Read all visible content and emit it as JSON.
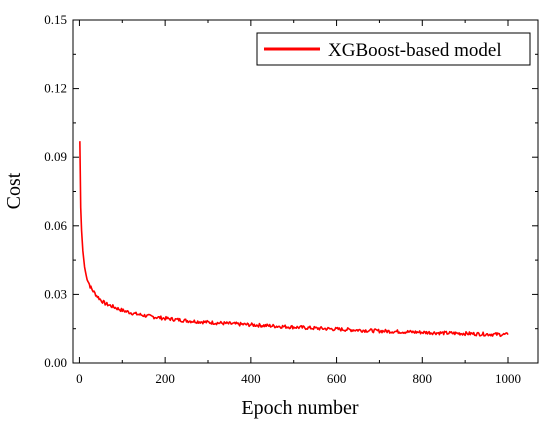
{
  "chart_data": {
    "type": "line",
    "title": "",
    "xlabel": "Epoch number",
    "ylabel": "Cost",
    "xlim": [
      -15,
      1070
    ],
    "ylim": [
      0,
      0.15
    ],
    "x_ticks": [
      0,
      200,
      400,
      600,
      800,
      1000
    ],
    "x_tick_labels": [
      "0",
      "200",
      "400",
      "600",
      "800",
      "1000"
    ],
    "y_ticks": [
      0,
      0.03,
      0.06,
      0.09,
      0.12,
      0.15
    ],
    "y_tick_labels": [
      "0.00",
      "0.03",
      "0.06",
      "0.09",
      "0.12",
      "0.15"
    ],
    "grid": false,
    "legend": {
      "position": "top-right",
      "entries": [
        "XGBoost-based model"
      ]
    },
    "series": [
      {
        "name": "XGBoost-based model",
        "color": "#ff0000",
        "x": [
          1,
          3,
          5,
          8,
          12,
          16,
          20,
          25,
          30,
          40,
          50,
          60,
          80,
          100,
          130,
          160,
          200,
          250,
          300,
          350,
          400,
          450,
          500,
          550,
          600,
          650,
          700,
          750,
          800,
          850,
          900,
          950,
          1000
        ],
        "y": [
          0.097,
          0.068,
          0.058,
          0.049,
          0.042,
          0.038,
          0.036,
          0.0335,
          0.032,
          0.0295,
          0.0275,
          0.026,
          0.0245,
          0.023,
          0.0215,
          0.0205,
          0.0195,
          0.0185,
          0.0178,
          0.0172,
          0.0167,
          0.0162,
          0.0157,
          0.0152,
          0.0148,
          0.0144,
          0.014,
          0.0137,
          0.0134,
          0.0131,
          0.0129,
          0.0126,
          0.0124
        ]
      }
    ]
  }
}
